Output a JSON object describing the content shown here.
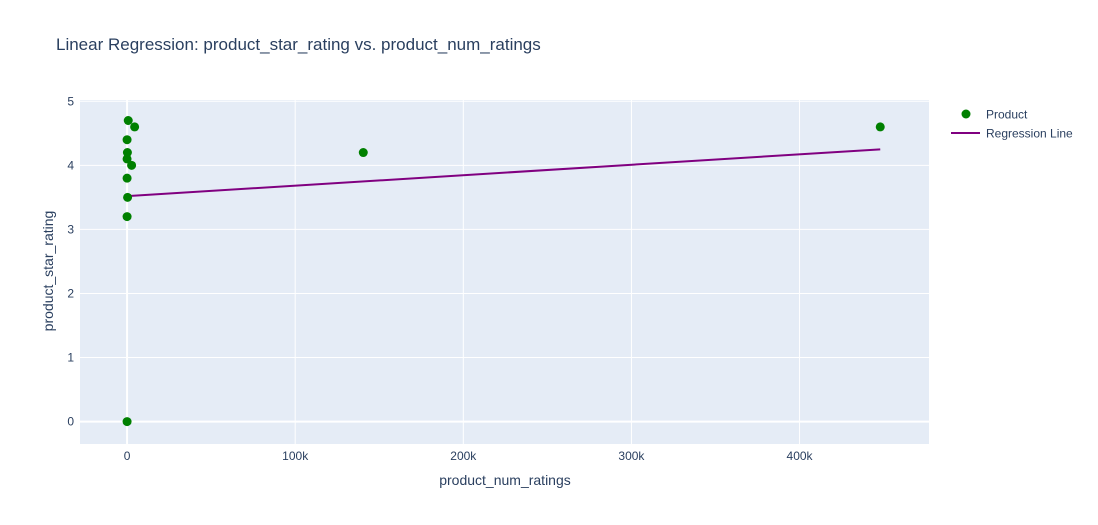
{
  "chart_data": {
    "type": "scatter",
    "title": "Linear Regression: product_star_rating vs. product_num_ratings",
    "xlabel": "product_num_ratings",
    "ylabel": "product_star_rating",
    "xlim": [
      -28000,
      477000
    ],
    "ylim": [
      -0.35,
      5.02
    ],
    "x_ticks": [
      0,
      100000,
      200000,
      300000,
      400000
    ],
    "x_tick_labels": [
      "0",
      "100k",
      "200k",
      "300k",
      "400k"
    ],
    "y_ticks": [
      0,
      1,
      2,
      3,
      4,
      5
    ],
    "y_tick_labels": [
      "0",
      "1",
      "2",
      "3",
      "4",
      "5"
    ],
    "grid": true,
    "legend_position": "top-right",
    "series": [
      {
        "name": "Product",
        "type": "scatter",
        "color": "#008000",
        "points": [
          {
            "x": 700,
            "y": 4.7
          },
          {
            "x": 4500,
            "y": 4.6
          },
          {
            "x": 0,
            "y": 4.4
          },
          {
            "x": 200,
            "y": 4.2
          },
          {
            "x": 0,
            "y": 4.1
          },
          {
            "x": 2700,
            "y": 4.0
          },
          {
            "x": 0,
            "y": 3.8
          },
          {
            "x": 300,
            "y": 3.5
          },
          {
            "x": 0,
            "y": 3.2
          },
          {
            "x": 0,
            "y": 0
          },
          {
            "x": 140500,
            "y": 4.2
          },
          {
            "x": 448000,
            "y": 4.6
          }
        ]
      },
      {
        "name": "Regression Line",
        "type": "line",
        "color": "#800080",
        "points": [
          {
            "x": 0,
            "y": 3.52
          },
          {
            "x": 448000,
            "y": 4.25
          }
        ]
      }
    ]
  }
}
